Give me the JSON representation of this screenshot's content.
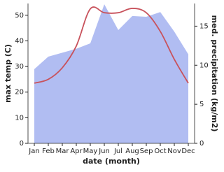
{
  "chart_data": {
    "type": "line-area",
    "categories": [
      "Jan",
      "Feb",
      "Mar",
      "Apr",
      "May",
      "Jun",
      "Jul",
      "Aug",
      "Sep",
      "Oct",
      "Nov",
      "Dec"
    ],
    "xlabel": "date (month)",
    "ylabel": "max temp (C)",
    "y2label": "med. precipitation (kg/m2)",
    "ylim": [
      0,
      54.6
    ],
    "yticks": [
      0,
      10,
      20,
      30,
      40,
      50
    ],
    "y2lim": [
      0,
      17.9
    ],
    "y2ticks": [
      0,
      5,
      10,
      15
    ],
    "series": [
      {
        "name": "max temp",
        "color": "#c8525c",
        "values": [
          23.5,
          25,
          29.5,
          38,
          52.5,
          51,
          51,
          52.7,
          51,
          43.7,
          32.8,
          23.5
        ]
      },
      {
        "name": "precipitation",
        "color": "#b1bdf2",
        "axis": "y2",
        "values": [
          9.5,
          11.1,
          11.6,
          12.1,
          12.8,
          17.8,
          14.5,
          16.3,
          16.2,
          16.8,
          14.3,
          11.4
        ]
      }
    ]
  }
}
